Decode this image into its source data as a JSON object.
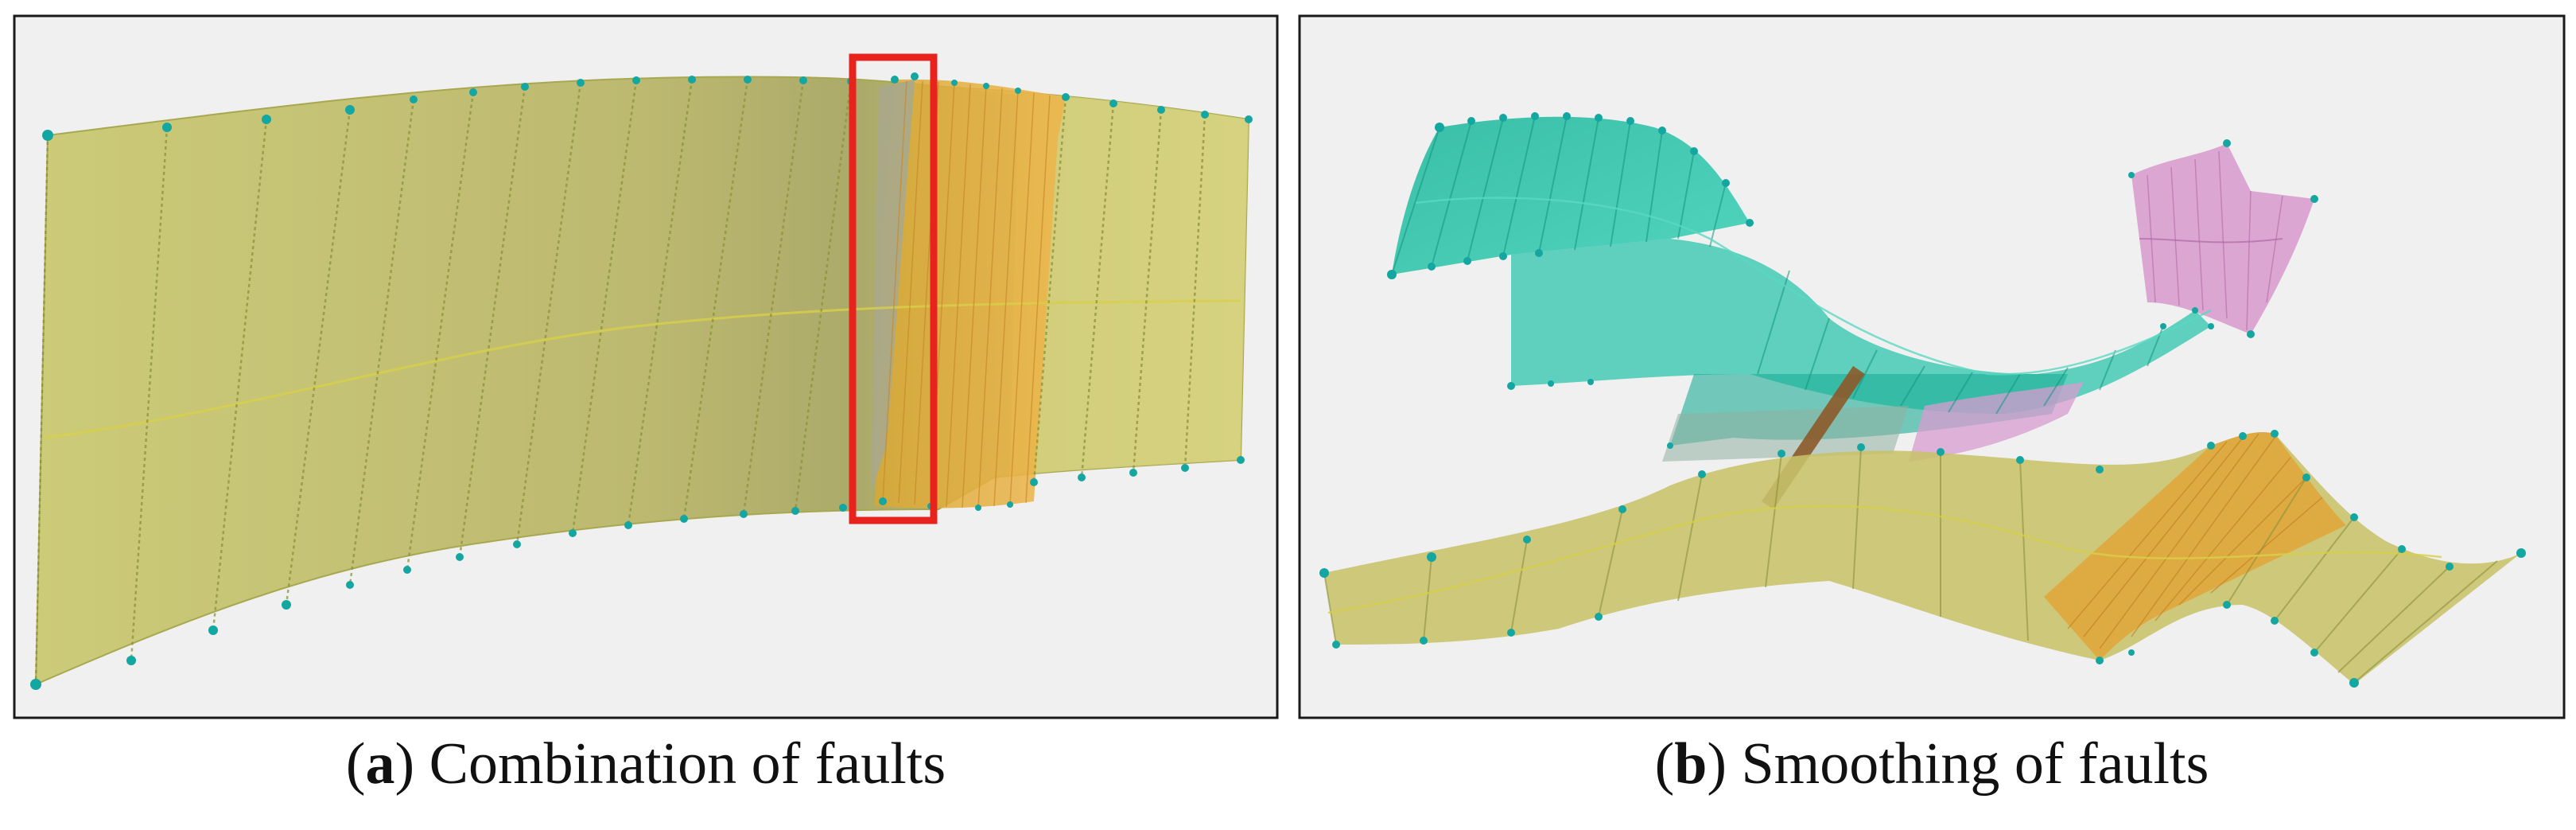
{
  "figure": {
    "panels": [
      {
        "id": "a",
        "letter": "a",
        "caption": "Combination of faults",
        "highlight_color": "#e8231e"
      },
      {
        "id": "b",
        "letter": "b",
        "caption": "Smoothing of faults"
      }
    ],
    "colors": {
      "frame": "#1a1a1a",
      "panel_background": "#f0f0f0",
      "fault_olive": "#c8c86a",
      "fault_orange": "#e6a535",
      "fault_teal": "#1fbfa2",
      "fault_pink": "#d890cc",
      "fault_brown": "#8c5a2a",
      "node": "#14a6a0"
    }
  }
}
